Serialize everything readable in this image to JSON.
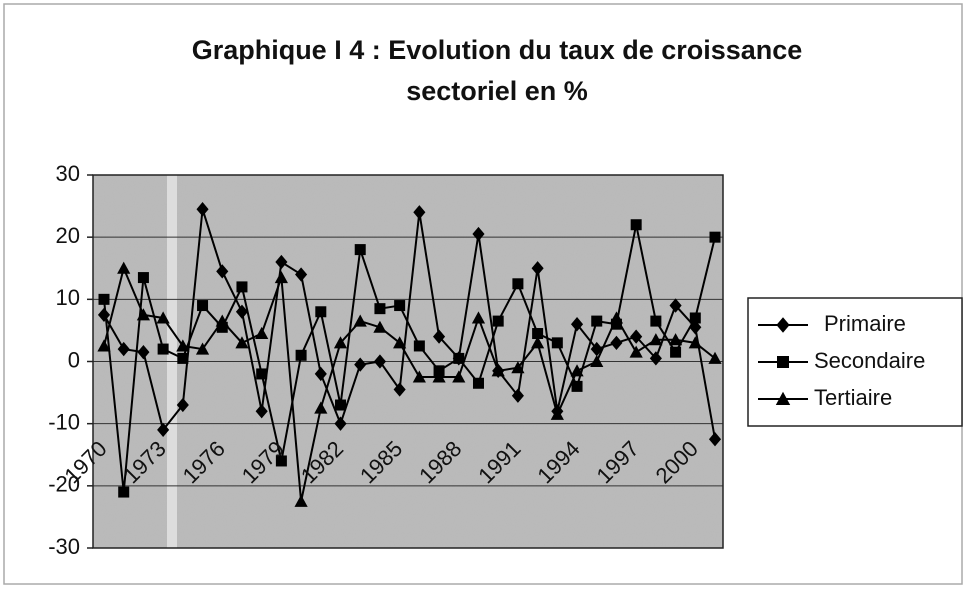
{
  "chart_data": {
    "type": "line",
    "title": [
      "Graphique I 4 : Evolution du taux de croissance",
      "sectoriel en %"
    ],
    "categories": [
      "1970",
      null,
      null,
      "1973",
      null,
      null,
      "1976",
      null,
      null,
      "1979",
      null,
      null,
      "1982",
      null,
      null,
      "1985",
      null,
      null,
      "1988",
      null,
      null,
      "1991",
      null,
      null,
      "1994",
      null,
      null,
      "1997",
      null,
      null,
      "2000",
      null
    ],
    "series": [
      {
        "name": "Primaire",
        "color": "#000000",
        "marker": "diamond",
        "values": [
          7.5,
          2,
          1.5,
          -11,
          -7,
          24.5,
          14.5,
          8,
          -8,
          16,
          14,
          -2,
          -10,
          -0.5,
          0,
          -4.5,
          24,
          4,
          0.5,
          20.5,
          -1.5,
          -5.5,
          15,
          -8,
          6,
          2,
          3,
          4,
          0.5,
          9,
          5.5,
          -12.5
        ]
      },
      {
        "name": "Secondaire",
        "color": "#000000",
        "marker": "square",
        "values": [
          10,
          -21,
          13.5,
          2,
          0.5,
          9,
          5.5,
          12,
          -2,
          -16,
          1,
          8,
          -7,
          18,
          8.5,
          9,
          2.5,
          -1.5,
          0.5,
          -3.5,
          6.5,
          12.5,
          4.5,
          3,
          -4,
          6.5,
          6,
          22,
          6.5,
          1.5,
          7,
          20
        ]
      },
      {
        "name": "Tertiaire",
        "color": "#000000",
        "marker": "triangle",
        "values": [
          2.5,
          15,
          7.5,
          7,
          2.5,
          2,
          6.5,
          3,
          4.5,
          13.5,
          -22.5,
          -7.5,
          3,
          6.5,
          5.5,
          3,
          -2.5,
          -2.5,
          -2.5,
          7,
          -1.5,
          -1,
          3,
          -8.5,
          -1.5,
          0,
          7,
          1.5,
          3.5,
          3.5,
          3,
          0.5
        ]
      }
    ],
    "ylim": [
      -30,
      30
    ],
    "yticks": [
      -30,
      -20,
      -10,
      0,
      10,
      20,
      30
    ],
    "grid": true,
    "legend": "right"
  }
}
